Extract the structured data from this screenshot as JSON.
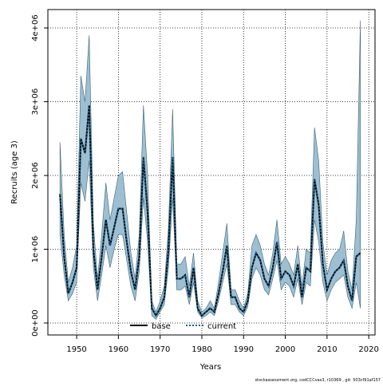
{
  "chart_data": {
    "type": "line",
    "x_label": "Years",
    "y_label": "Recruits (age 3)",
    "footer": "stockassessment.org, codCCCvas3, r10369 , git: 503cf91af157",
    "xlim": [
      1943.1,
      2021.5
    ],
    "ylim": [
      -162000,
      4249000
    ],
    "xticks": [
      1950,
      1960,
      1970,
      1980,
      1990,
      2000,
      2010,
      2020
    ],
    "yticks": [
      {
        "value": 0,
        "label": "0e+00"
      },
      {
        "value": 1000000,
        "label": "1e+06"
      },
      {
        "value": 2000000,
        "label": "2e+06"
      },
      {
        "value": 3000000,
        "label": "3e+06"
      },
      {
        "value": 4000000,
        "label": "4e+06"
      }
    ],
    "grid": true,
    "band_color": "#9dbfd1",
    "x": [
      1946,
      1947,
      1948,
      1949,
      1950,
      1951,
      1952,
      1953,
      1954,
      1955,
      1956,
      1957,
      1958,
      1959,
      1960,
      1961,
      1962,
      1963,
      1964,
      1965,
      1966,
      1967,
      1968,
      1969,
      1970,
      1971,
      1972,
      1973,
      1974,
      1975,
      1976,
      1977,
      1978,
      1979,
      1980,
      1981,
      1982,
      1983,
      1984,
      1985,
      1986,
      1987,
      1988,
      1989,
      1990,
      1991,
      1992,
      1993,
      1994,
      1995,
      1996,
      1997,
      1998,
      1999,
      2000,
      2001,
      2002,
      2003,
      2004,
      2005,
      2006,
      2007,
      2008,
      2009,
      2010,
      2011,
      2012,
      2013,
      2014,
      2015,
      2016,
      2017,
      2018
    ],
    "series": [
      {
        "name": "base",
        "color": "#000000",
        "dash": false,
        "values": [
          1750000,
          900000,
          400000,
          550000,
          750000,
          2500000,
          2300000,
          2950000,
          1000000,
          450000,
          900000,
          1400000,
          1050000,
          1300000,
          1550000,
          1550000,
          1100000,
          700000,
          450000,
          900000,
          2250000,
          1500000,
          200000,
          100000,
          200000,
          350000,
          1000000,
          2250000,
          600000,
          600000,
          650000,
          350000,
          750000,
          200000,
          100000,
          150000,
          200000,
          150000,
          400000,
          700000,
          1050000,
          350000,
          350000,
          200000,
          150000,
          300000,
          750000,
          950000,
          850000,
          600000,
          500000,
          750000,
          1100000,
          600000,
          700000,
          650000,
          500000,
          800000,
          350000,
          750000,
          700000,
          1950000,
          1600000,
          800000,
          450000,
          600000,
          700000,
          750000,
          850000,
          500000,
          300000,
          900000,
          950000
        ]
      },
      {
        "name": "current",
        "color": "#1f5f8b",
        "dash": true,
        "values": [
          1750000,
          900000,
          400000,
          550000,
          750000,
          2500000,
          2300000,
          2950000,
          1000000,
          450000,
          900000,
          1400000,
          1050000,
          1300000,
          1550000,
          1550000,
          1100000,
          700000,
          450000,
          900000,
          2250000,
          1500000,
          200000,
          100000,
          200000,
          350000,
          1000000,
          2250000,
          600000,
          600000,
          650000,
          350000,
          750000,
          200000,
          100000,
          150000,
          200000,
          150000,
          400000,
          700000,
          1050000,
          350000,
          350000,
          200000,
          150000,
          300000,
          750000,
          950000,
          850000,
          600000,
          500000,
          750000,
          1100000,
          600000,
          700000,
          650000,
          500000,
          800000,
          350000,
          750000,
          700000,
          1950000,
          1600000,
          800000,
          450000,
          600000,
          700000,
          750000,
          850000,
          500000,
          300000,
          900000,
          950000
        ],
        "lower": [
          1200000,
          650000,
          300000,
          400000,
          550000,
          1900000,
          1650000,
          2200000,
          750000,
          300000,
          650000,
          1050000,
          750000,
          1000000,
          1200000,
          1200000,
          850000,
          500000,
          300000,
          700000,
          1700000,
          1100000,
          100000,
          50000,
          150000,
          250000,
          750000,
          1700000,
          450000,
          450000,
          500000,
          250000,
          550000,
          150000,
          70000,
          100000,
          150000,
          100000,
          300000,
          550000,
          800000,
          250000,
          250000,
          150000,
          100000,
          220000,
          600000,
          750000,
          650000,
          450000,
          380000,
          600000,
          850000,
          450000,
          550000,
          500000,
          350000,
          600000,
          250000,
          550000,
          500000,
          1400000,
          1100000,
          550000,
          300000,
          450000,
          550000,
          600000,
          650000,
          350000,
          200000,
          550000,
          200000
        ],
        "upper": [
          2450000,
          1200000,
          550000,
          750000,
          1050000,
          3350000,
          3000000,
          3900000,
          1350000,
          600000,
          1200000,
          1900000,
          1400000,
          1700000,
          2000000,
          2050000,
          1500000,
          950000,
          600000,
          1200000,
          2950000,
          2000000,
          300000,
          150000,
          300000,
          500000,
          1300000,
          2900000,
          800000,
          800000,
          900000,
          500000,
          950000,
          300000,
          150000,
          200000,
          300000,
          200000,
          550000,
          950000,
          1350000,
          450000,
          450000,
          300000,
          200000,
          400000,
          1050000,
          1200000,
          1050000,
          800000,
          650000,
          950000,
          1400000,
          800000,
          900000,
          800000,
          650000,
          1050000,
          500000,
          1000000,
          950000,
          2650000,
          2200000,
          1100000,
          650000,
          850000,
          950000,
          1000000,
          1250000,
          700000,
          450000,
          1400000,
          4100000
        ]
      }
    ]
  }
}
